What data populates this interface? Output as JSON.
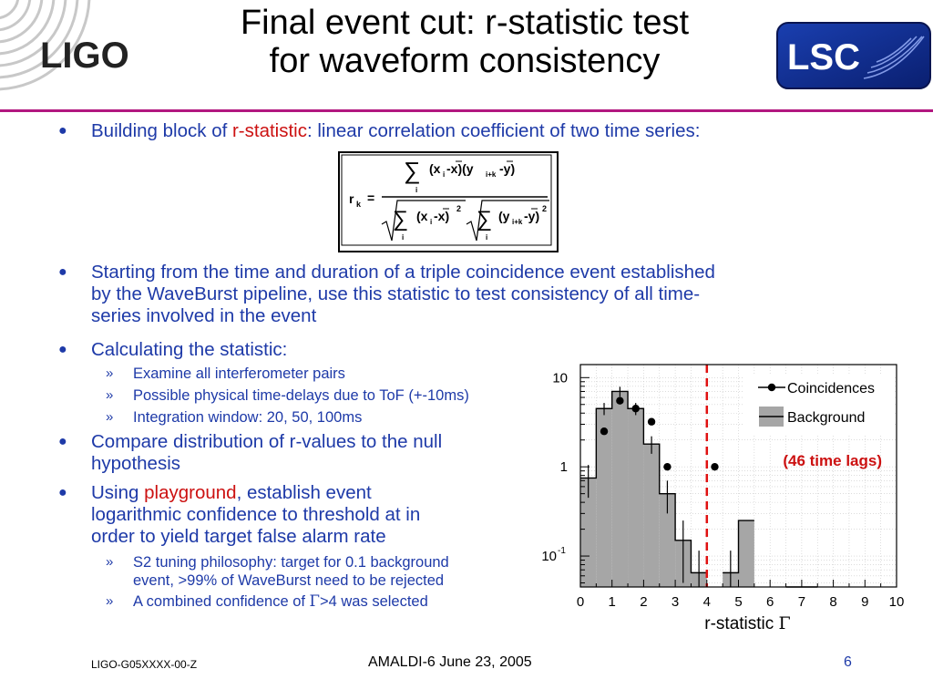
{
  "header": {
    "title_line1": "Final event cut: r-statistic test",
    "title_line2": "for waveform consistency",
    "ligo_logo_text": "LIGO",
    "lsc_logo_text": "LSC",
    "rule_color": "#b2177f"
  },
  "bullets": {
    "b1_pre": "Building block of ",
    "b1_red": "r-statistic",
    "b1_post": ": linear correlation coefficient of two time series:",
    "b2_l1": "Starting from the time and duration of a triple coincidence event established",
    "b2_l2": "by the WaveBurst pipeline, use this statistic to test consistency of all time-",
    "b2_l3": "series involved in the event",
    "b3": "Calculating the statistic:",
    "b3_sub": [
      "Examine all interferometer pairs",
      "Possible physical time-delays due to ToF (+-10ms)",
      "Integration window: 20, 50, 100ms"
    ],
    "b4_l1": "Compare distribution of r-values to the null",
    "b4_l2": "hypothesis",
    "b5_pre": "Using ",
    "b5_red": "playground",
    "b5_post": ", establish event",
    "b5_l2": "logarithmic confidence to threshold at in",
    "b5_l3": "order to yield target false alarm rate",
    "b5_sub1_l1": "S2 tuning philosophy: target for 0.1 background",
    "b5_sub1_l2": "event, >99% of WaveBurst need to be rejected",
    "b5_sub2_pre": "A combined confidence of ",
    "b5_sub2_gamma": "Γ",
    "b5_sub2_post": ">4 was selected",
    "text_color": "#1e3aa8",
    "highlight_color": "#cc1111"
  },
  "formula": {
    "lhs": "r",
    "lhs_sub": "k",
    "num_a": "(x",
    "num_b": "-x)(y",
    "num_c": "-y)",
    "den_a": "(x",
    "den_b": "-x)",
    "den_c": "(y",
    "den_d": "-y)",
    "sub_i": "i",
    "sub_ik": "i+k",
    "sup_2": "2"
  },
  "chart_data": {
    "type": "bar",
    "x_label": "r-statistic ",
    "x_label_symbol": "Γ",
    "xlim": [
      0,
      10
    ],
    "ylim": [
      0.045,
      14
    ],
    "y_scale": "log",
    "x_ticks": [
      "0",
      "1",
      "2",
      "3",
      "4",
      "5",
      "6",
      "7",
      "8",
      "9",
      "10"
    ],
    "y_ticks": [
      {
        "value": 10,
        "label": "10",
        "exp": ""
      },
      {
        "value": 1,
        "label": "1",
        "exp": ""
      },
      {
        "value": 0.1,
        "label": "10",
        "exp": "-1"
      }
    ],
    "grid": true,
    "legend_position": "top-right",
    "threshold": 4.0,
    "threshold_color": "#e01010",
    "bin_width": 0.5,
    "series": [
      {
        "name": "Background",
        "style": "histogram",
        "color": "#a6a6a6",
        "bins": [
          0,
          0.5,
          1.0,
          1.5,
          2.0,
          2.5,
          3.0,
          3.5,
          4.0,
          4.5,
          5.0,
          5.5,
          6.0,
          6.5,
          7.0,
          7.5,
          8.0
        ],
        "values": [
          0.75,
          4.5,
          7.0,
          4.5,
          1.8,
          0.5,
          0.15,
          0.065,
          0,
          0.065,
          0.25,
          0,
          0,
          0.045,
          0.045,
          0,
          0
        ],
        "errors": [
          0.3,
          0.7,
          0.9,
          0.7,
          0.4,
          0.2,
          0.1,
          0.05,
          0,
          0.05,
          0,
          0,
          0,
          0,
          0,
          0,
          0
        ]
      },
      {
        "name": "Coincidences",
        "style": "points",
        "color": "#000000",
        "x": [
          0.75,
          1.25,
          1.75,
          2.25,
          2.75,
          4.25
        ],
        "y": [
          2.5,
          5.5,
          4.5,
          3.2,
          1.0,
          1.0
        ]
      }
    ],
    "annotation": "(46 time lags)",
    "annotation_color": "#cc1111"
  },
  "footer": {
    "left": "LIGO-G05XXXX-00-Z",
    "center": "AMALDI-6 June 23, 2005",
    "page": "6",
    "page_color": "#1e3aa8"
  }
}
